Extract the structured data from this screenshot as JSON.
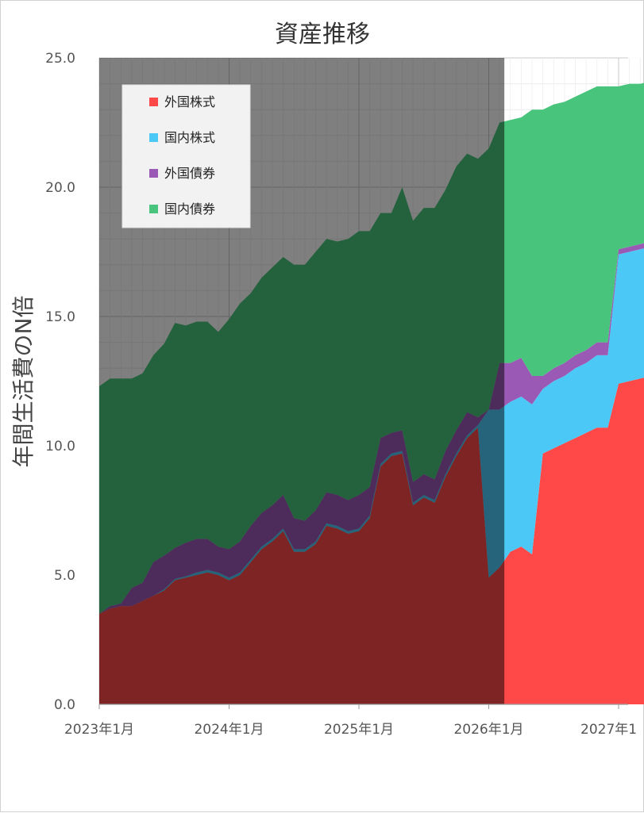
{
  "chart_data": {
    "type": "area",
    "stacked": true,
    "title": "資産推移",
    "ylabel": "年間生活費のN倍",
    "xlabel": "",
    "ylim": [
      0,
      25
    ],
    "yticks": [
      "0.0",
      "5.0",
      "10.0",
      "15.0",
      "20.0",
      "25.0"
    ],
    "xticks": [
      "2023年1月",
      "2024年1月",
      "2025年1月",
      "2026年1月",
      "2027年1"
    ],
    "x_start": "2023年1月",
    "x_end": "2027年2月",
    "grid": true,
    "legend_position": "top-left",
    "shaded_region": {
      "start": "2023年1月",
      "end": "2026年2月",
      "color": "#000000",
      "opacity": 0.5
    },
    "series": [
      {
        "name": "外国株式",
        "color": "#FF4949",
        "values": [
          3.5,
          3.7,
          3.8,
          3.8,
          4.0,
          4.2,
          4.4,
          4.8,
          4.9,
          5.0,
          5.1,
          5.0,
          4.8,
          5.0,
          5.5,
          6.0,
          6.3,
          6.7,
          5.9,
          5.9,
          6.2,
          6.9,
          6.8,
          6.6,
          6.7,
          7.2,
          9.2,
          9.6,
          9.7,
          7.7,
          8.0,
          7.8,
          8.8,
          9.6,
          10.3,
          10.7,
          4.9,
          5.3,
          5.9,
          6.1,
          5.8,
          9.7,
          9.9,
          10.1,
          10.3,
          10.5,
          10.7,
          10.7,
          12.4,
          12.5,
          12.6,
          12.7,
          12.8,
          12.9
        ]
      },
      {
        "name": "国内株式",
        "color": "#4BC8F5",
        "values": [
          0,
          0,
          0,
          0,
          0,
          0,
          0.05,
          0.05,
          0.05,
          0.1,
          0.1,
          0.1,
          0.1,
          0.1,
          0.1,
          0.1,
          0.1,
          0.1,
          0.1,
          0.1,
          0.1,
          0.1,
          0.1,
          0.1,
          0.1,
          0.1,
          0.1,
          0.1,
          0.1,
          0.1,
          0.1,
          0.1,
          0.1,
          0.1,
          0.1,
          0.1,
          6.5,
          6.1,
          5.8,
          5.8,
          5.8,
          2.5,
          2.6,
          2.6,
          2.7,
          2.7,
          2.8,
          2.8,
          5.0,
          5.0,
          5.0,
          5.0,
          5.0,
          5.0
        ]
      },
      {
        "name": "外国債券",
        "color": "#9B59B6",
        "values": [
          0,
          0.1,
          0.1,
          0.7,
          0.7,
          1.3,
          1.3,
          1.2,
          1.3,
          1.3,
          1.2,
          1.0,
          1.1,
          1.2,
          1.3,
          1.3,
          1.3,
          1.3,
          1.2,
          1.1,
          1.2,
          1.2,
          1.2,
          1.2,
          1.3,
          1.1,
          1.0,
          0.8,
          0.8,
          0.8,
          0.8,
          0.8,
          0.9,
          0.9,
          0.9,
          0.3,
          0,
          1.8,
          1.5,
          1.5,
          1.1,
          0.5,
          0.5,
          0.5,
          0.5,
          0.5,
          0.5,
          0.5,
          0.2,
          0.2,
          0.2,
          0.2,
          0.2,
          0.2
        ]
      },
      {
        "name": "国内債券",
        "color": "#48C47C",
        "values": [
          8.8,
          8.8,
          8.7,
          8.1,
          8.1,
          8.0,
          8.2,
          8.7,
          8.4,
          8.4,
          8.4,
          8.3,
          8.9,
          9.2,
          9.0,
          9.1,
          9.2,
          9.2,
          9.8,
          9.9,
          10.0,
          9.8,
          9.8,
          10.1,
          10.2,
          9.9,
          8.7,
          8.5,
          9.4,
          10.1,
          10.3,
          10.5,
          10.1,
          10.2,
          10.0,
          10.0,
          10.1,
          9.3,
          9.4,
          9.3,
          10.3,
          10.3,
          10.2,
          10.1,
          10.0,
          10.0,
          9.9,
          9.9,
          6.3,
          6.3,
          6.2,
          6.2,
          6.1,
          6.1
        ]
      }
    ]
  }
}
